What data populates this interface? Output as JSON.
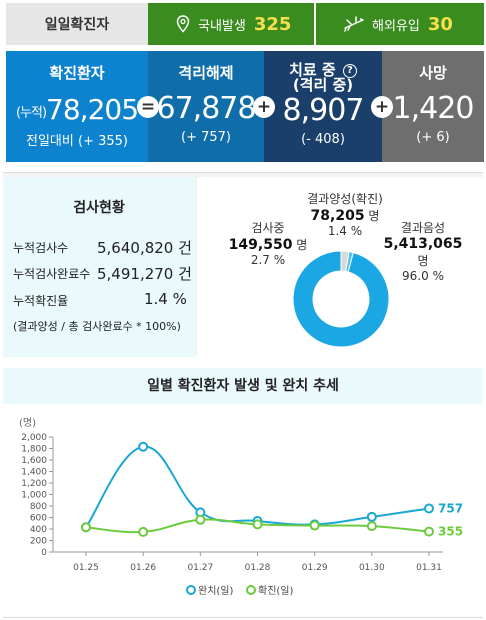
{
  "top": {
    "daily_label": "일일확진자",
    "domestic_label": "국내발생",
    "domestic_value": "325",
    "overseas_label": "해외유입",
    "overseas_value": "30"
  },
  "stats": {
    "confirmed": {
      "title": "확진환자",
      "prefix": "(누적)",
      "value": "78,205",
      "sub": "전일대비 (+ 355)"
    },
    "released": {
      "title": "격리해제",
      "value": "67,878",
      "sub": "(+ 757)"
    },
    "treating": {
      "title": "치료 중",
      "title2": "(격리 중)",
      "value": "8,907",
      "sub": "(- 408)"
    },
    "deaths": {
      "title": "사망",
      "value": "1,420",
      "sub": "(+ 6)"
    },
    "op_eq": "=",
    "op_plus1": "+",
    "op_plus2": "+"
  },
  "test": {
    "title": "검사현황",
    "rows": [
      {
        "label": "누적검사수",
        "value": "5,640,820 건"
      },
      {
        "label": "누적검사완료수",
        "value": "5,491,270 건"
      },
      {
        "label": "누적확진율",
        "value": "1.4 %"
      }
    ],
    "note": "(결과양성 / 총 검사완료수 * 100%)",
    "donut": {
      "positive": {
        "label": "결과양성(확진)",
        "value": "78,205",
        "unit": "명",
        "pct": "1.4 %",
        "pct_num": 1.4,
        "color": "#4fc3ea"
      },
      "testing": {
        "label": "검사중",
        "value": "149,550",
        "unit": "명",
        "pct": "2.7 %",
        "pct_num": 2.7,
        "color": "#d9d9d9"
      },
      "negative": {
        "label": "결과음성",
        "value": "5,413,065",
        "unit": "명",
        "pct": "96.0 %",
        "pct_num": 96.0,
        "color": "#1aa7e4"
      }
    }
  },
  "trend": {
    "title": "일별 확진환자 발생 및 완치 추세",
    "legend_release": "완치(일)",
    "legend_confirm": "확진(일)"
  },
  "chart_data": {
    "type": "line",
    "title": "일별 확진환자 발생 및 완치 추세",
    "ylabel": "(명)",
    "ylim": [
      0,
      2000
    ],
    "yticks": [
      0,
      200,
      400,
      600,
      800,
      1000,
      1200,
      1400,
      1600,
      1800,
      2000
    ],
    "ytick_labels": [
      "0",
      "200",
      "400",
      "600",
      "800",
      "1,000",
      "1,200",
      "1,400",
      "1,600",
      "1,800",
      "2,000"
    ],
    "categories": [
      "01.25",
      "01.26",
      "01.27",
      "01.28",
      "01.29",
      "01.30",
      "01.31"
    ],
    "series": [
      {
        "name": "완치(일)",
        "color": "#1aa7d6",
        "values": [
          430,
          1830,
          690,
          540,
          480,
          610,
          757
        ],
        "last_label": "757"
      },
      {
        "name": "확진(일)",
        "color": "#6ccb3c",
        "values": [
          430,
          350,
          560,
          480,
          460,
          450,
          355
        ],
        "last_label": "355"
      }
    ],
    "grid": false,
    "legend": "bottom"
  }
}
